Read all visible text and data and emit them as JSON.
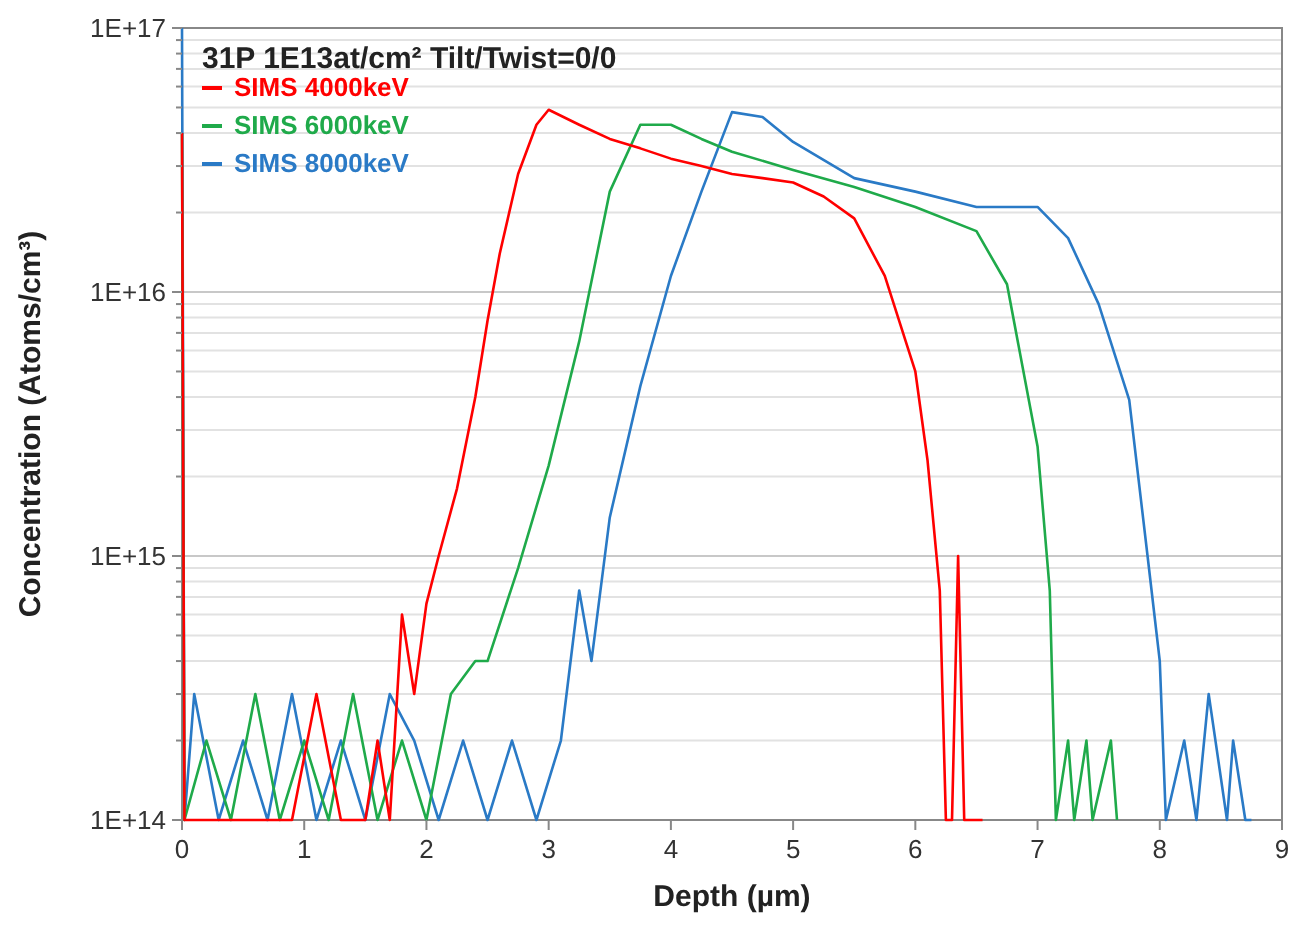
{
  "chart_data": {
    "type": "line",
    "title": "31P 1E13at/cm² Tilt/Twist=0/0",
    "xlabel": "Depth (µm)",
    "ylabel": "Concentration (Atoms/cm³)",
    "log": "y",
    "grid": "y",
    "legend": "top left",
    "xlim": [
      0,
      9
    ],
    "ylim": [
      100000000000000.0,
      1e+17
    ],
    "xticks": [
      0,
      1,
      2,
      3,
      4,
      5,
      6,
      7,
      8,
      9
    ],
    "yticks": [
      {
        "value": 100000000000000.0,
        "label": "1E+14"
      },
      {
        "value": 200000000000000.0,
        "label": null
      },
      {
        "value": 300000000000000.0,
        "label": null
      },
      {
        "value": 400000000000000.0,
        "label": null
      },
      {
        "value": 500000000000000.0,
        "label": null
      },
      {
        "value": 600000000000000.0,
        "label": null
      },
      {
        "value": 700000000000000.0,
        "label": null
      },
      {
        "value": 800000000000000.0,
        "label": null
      },
      {
        "value": 900000000000000.0,
        "label": null
      },
      {
        "value": 1000000000000000.0,
        "label": "1E+15"
      },
      {
        "value": 2000000000000000.0,
        "label": null
      },
      {
        "value": 3000000000000000.0,
        "label": null
      },
      {
        "value": 4000000000000000.0,
        "label": null
      },
      {
        "value": 5000000000000000.0,
        "label": null
      },
      {
        "value": 6000000000000000.0,
        "label": null
      },
      {
        "value": 7000000000000000.0,
        "label": null
      },
      {
        "value": 8000000000000000.0,
        "label": null
      },
      {
        "value": 9000000000000000.0,
        "label": null
      },
      {
        "value": 1e+16,
        "label": "1E+16"
      },
      {
        "value": 2e+16,
        "label": null
      },
      {
        "value": 3e+16,
        "label": null
      },
      {
        "value": 4e+16,
        "label": null
      },
      {
        "value": 5e+16,
        "label": null
      },
      {
        "value": 6e+16,
        "label": null
      },
      {
        "value": 7e+16,
        "label": null
      },
      {
        "value": 8e+16,
        "label": null
      },
      {
        "value": 9e+16,
        "label": null
      },
      {
        "value": 1e+17,
        "label": "1E+17"
      }
    ],
    "series": [
      {
        "name": "SIMS 4000keV",
        "color": "#ff0000",
        "x": [
          0,
          0.02,
          0.1,
          0.3,
          0.5,
          0.7,
          0.9,
          1.1,
          1.3,
          1.5,
          1.6,
          1.7,
          1.8,
          1.9,
          2,
          2.1,
          2.25,
          2.4,
          2.5,
          2.6,
          2.75,
          2.9,
          3,
          3.25,
          3.5,
          3.75,
          4,
          4.25,
          4.5,
          4.75,
          5,
          5.25,
          5.5,
          5.75,
          6,
          6.1,
          6.2,
          6.25,
          6.3,
          6.35,
          6.4,
          6.5,
          6.55
        ],
        "values": [
          4e+16,
          100000000000000.0,
          100000000000000.0,
          100000000000000.0,
          100000000000000.0,
          100000000000000.0,
          100000000000000.0,
          300000000000000.0,
          100000000000000.0,
          100000000000000.0,
          200000000000000.0,
          100000000000000.0,
          600000000000000.0,
          300000000000000.0,
          660000000000000.0,
          1000000000000000.0,
          1800000000000000.0,
          4000000000000000.0,
          7800000000000000.0,
          1.4e+16,
          2.8e+16,
          4.3e+16,
          4.9e+16,
          4.3e+16,
          3.8e+16,
          3.5e+16,
          3.2e+16,
          3e+16,
          2.8e+16,
          2.7e+16,
          2.6e+16,
          2.3e+16,
          1.9e+16,
          1.15e+16,
          5000000000000000.0,
          2300000000000000.0,
          740000000000000.0,
          100000000000000.0,
          100000000000000.0,
          1000000000000000.0,
          100000000000000.0,
          100000000000000.0,
          100000000000000.0
        ]
      },
      {
        "name": "SIMS 6000keV",
        "color": "#1faa4a",
        "x": [
          0,
          0.02,
          0.2,
          0.4,
          0.6,
          0.8,
          1,
          1.2,
          1.4,
          1.6,
          1.8,
          2,
          2.2,
          2.4,
          2.5,
          2.75,
          3,
          3.25,
          3.5,
          3.75,
          4,
          4.25,
          4.5,
          5,
          5.5,
          6,
          6.5,
          6.75,
          7,
          7.1,
          7.15,
          7.25,
          7.3,
          7.4,
          7.45,
          7.6,
          7.65
        ],
        "values": [
          4e+16,
          100000000000000.0,
          200000000000000.0,
          100000000000000.0,
          300000000000000.0,
          100000000000000.0,
          200000000000000.0,
          100000000000000.0,
          300000000000000.0,
          100000000000000.0,
          200000000000000.0,
          100000000000000.0,
          300000000000000.0,
          400000000000000.0,
          400000000000000.0,
          900000000000000.0,
          2200000000000000.0,
          6500000000000000.0,
          2.4e+16,
          4.3e+16,
          4.3e+16,
          3.8e+16,
          3.4e+16,
          2.9e+16,
          2.5e+16,
          2.1e+16,
          1.7e+16,
          1.07e+16,
          2600000000000000.0,
          740000000000000.0,
          100000000000000.0,
          200000000000000.0,
          100000000000000.0,
          200000000000000.0,
          100000000000000.0,
          200000000000000.0,
          100000000000000.0
        ]
      },
      {
        "name": "SIMS 8000keV",
        "color": "#2a7ac6",
        "x": [
          0,
          0.02,
          0.1,
          0.3,
          0.5,
          0.7,
          0.9,
          1.1,
          1.3,
          1.5,
          1.7,
          1.9,
          2.1,
          2.3,
          2.5,
          2.7,
          2.9,
          3.1,
          3.25,
          3.35,
          3.5,
          3.75,
          4,
          4.25,
          4.5,
          4.75,
          5,
          5.5,
          6,
          6.5,
          7,
          7.25,
          7.5,
          7.75,
          7.9,
          8,
          8.05,
          8.2,
          8.3,
          8.4,
          8.55,
          8.6,
          8.7,
          8.75
        ],
        "values": [
          1e+17,
          100000000000000.0,
          300000000000000.0,
          100000000000000.0,
          200000000000000.0,
          100000000000000.0,
          300000000000000.0,
          100000000000000.0,
          200000000000000.0,
          100000000000000.0,
          300000000000000.0,
          200000000000000.0,
          100000000000000.0,
          200000000000000.0,
          100000000000000.0,
          200000000000000.0,
          100000000000000.0,
          200000000000000.0,
          740000000000000.0,
          400000000000000.0,
          1400000000000000.0,
          4400000000000000.0,
          1.15e+16,
          2.4e+16,
          4.8e+16,
          4.6e+16,
          3.7e+16,
          2.7e+16,
          2.4e+16,
          2.1e+16,
          2.1e+16,
          1.6e+16,
          9000000000000000.0,
          3900000000000000.0,
          1000000000000000.0,
          400000000000000.0,
          100000000000000.0,
          200000000000000.0,
          100000000000000.0,
          300000000000000.0,
          100000000000000.0,
          200000000000000.0,
          100000000000000.0,
          100000000000000.0
        ]
      }
    ]
  }
}
